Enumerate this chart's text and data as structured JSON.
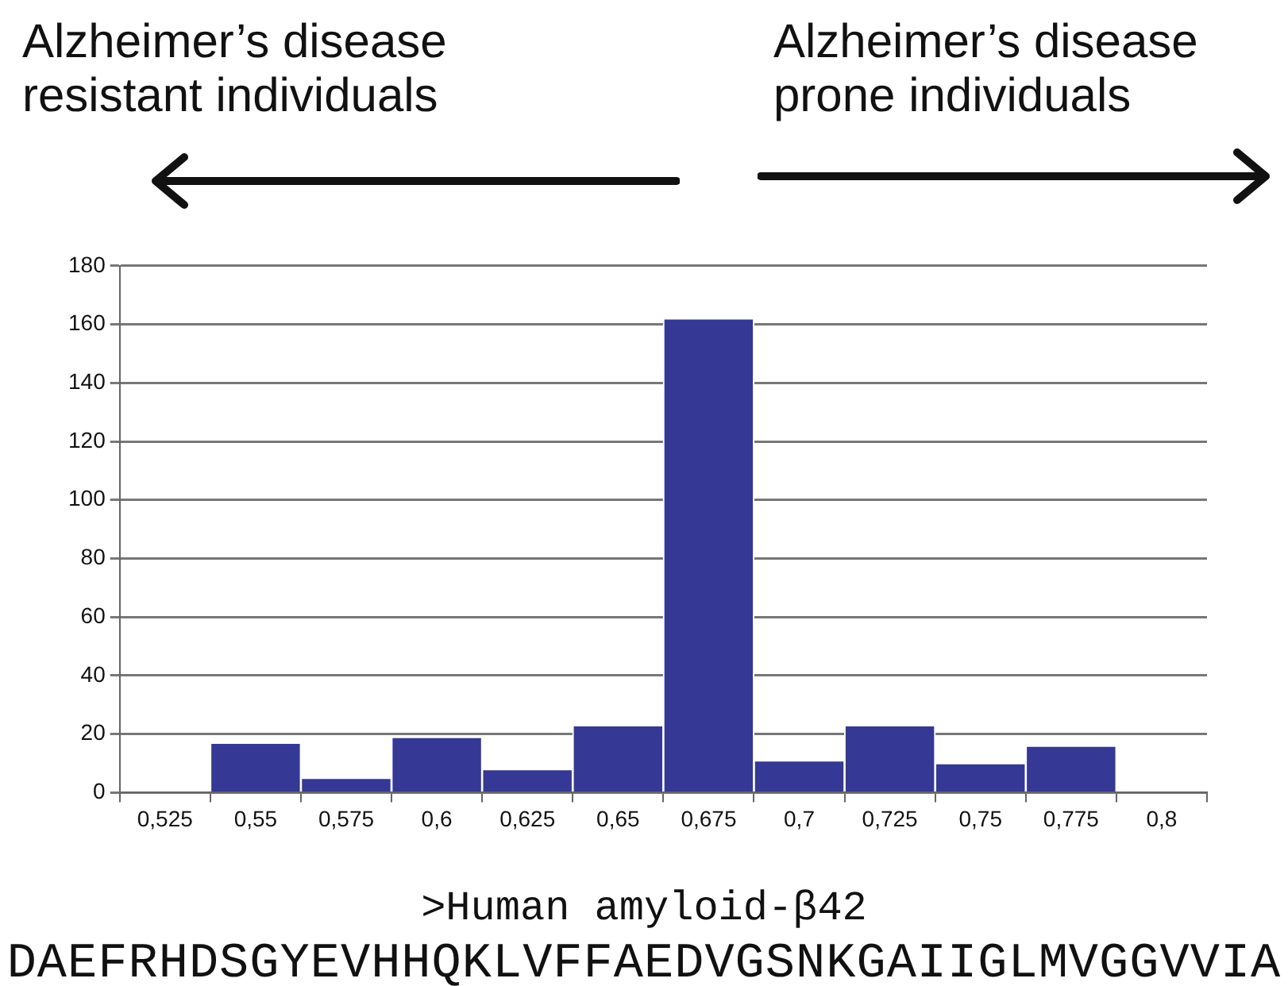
{
  "chart_data": {
    "type": "bar",
    "categories": [
      "0,525",
      "0,55",
      "0,575",
      "0,6",
      "0,625",
      "0,65",
      "0,675",
      "0,7",
      "0,725",
      "0,75",
      "0,775",
      "0,8"
    ],
    "values": [
      0,
      17,
      5,
      19,
      8,
      23,
      162,
      11,
      23,
      10,
      16,
      0
    ],
    "color": "#353895",
    "ylim": [
      0,
      180
    ],
    "yticks": [
      0,
      20,
      40,
      60,
      80,
      100,
      120,
      140,
      160,
      180
    ],
    "grid": "y",
    "legend": false,
    "annotations": [
      "Alzheimer’s disease\nresistant individuals",
      "Alzheimer’s disease\nprone individuals",
      ">Human amyloid-β42",
      "DAEFRHDSGYEVHHQKLVFFAEDVGSNKGAIIGLMVGGVVIA"
    ]
  }
}
